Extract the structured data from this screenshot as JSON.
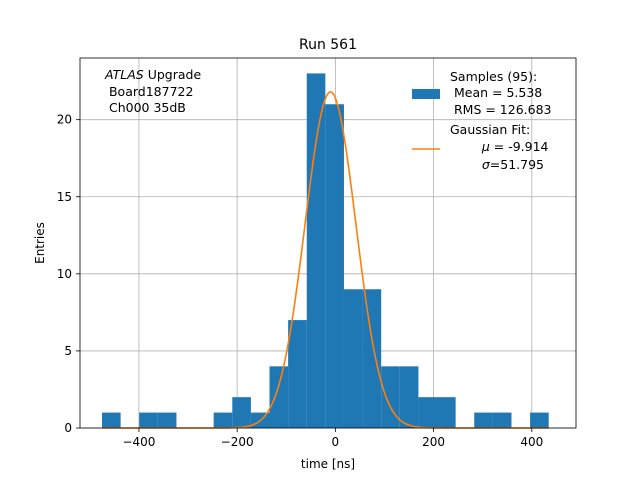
{
  "chart_data": {
    "type": "bar",
    "title": "Run 561",
    "xlabel": "time [ns]",
    "ylabel": "Entries",
    "xlim": [
      -520,
      490
    ],
    "ylim": [
      0,
      24
    ],
    "grid": true,
    "legend_position": "top-right",
    "x_ticks": [
      -400,
      -200,
      0,
      200,
      400
    ],
    "x_tick_labels": [
      "−400",
      "−200",
      "0",
      "200",
      "400"
    ],
    "y_ticks": [
      0,
      5,
      10,
      15,
      20
    ],
    "y_tick_labels": [
      "0",
      "5",
      "10",
      "15",
      "20"
    ],
    "histogram": {
      "bin_edges": [
        -475.2,
        -437.3,
        -399.4,
        -361.5,
        -323.6,
        -285.7,
        -247.8,
        -209.9,
        -172.0,
        -134.1,
        -96.2,
        -58.3,
        -20.4,
        17.5,
        55.4,
        93.3,
        131.2,
        169.1,
        207.0,
        244.9,
        282.8,
        320.7,
        358.6,
        396.5,
        434.4
      ],
      "counts": [
        1,
        0,
        1,
        1,
        0,
        0,
        1,
        2,
        1,
        4,
        7,
        23,
        21,
        9,
        9,
        4,
        4,
        2,
        2,
        0,
        1,
        1,
        0,
        1
      ],
      "color": "#1f77b4"
    },
    "gaussian_fit": {
      "mu": -9.914,
      "sigma": 51.795,
      "amplitude": 21.8,
      "color": "#ff7f0e"
    },
    "legend": {
      "samples_header": "Samples (95):",
      "samples_mean": " Mean = 5.538",
      "samples_rms": " RMS = 126.683",
      "fit_header": "Gaussian Fit:",
      "fit_mu_symbol": "μ",
      "fit_mu_value": " = -9.914",
      "fit_sigma_symbol": "σ",
      "fit_sigma_value": "=51.795"
    },
    "annotation": {
      "experiment": "ATLAS",
      "experiment_suffix": " Upgrade",
      "board": " Board187722",
      "channel": " Ch000 35dB"
    }
  }
}
